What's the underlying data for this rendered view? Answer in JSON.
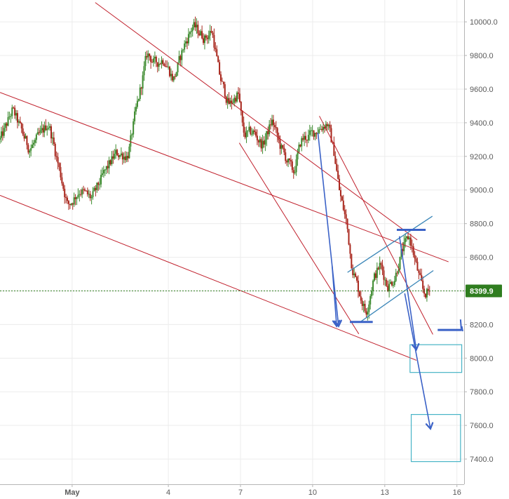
{
  "chart_data": {
    "type": "candlestick",
    "title": "",
    "xlabel": "",
    "ylabel": "",
    "ylim": [
      7250,
      10130
    ],
    "xlim": [
      -3.0,
      16.3
    ],
    "grid": true,
    "x_tick_labels": [
      {
        "x": 0,
        "label": "May"
      },
      {
        "x": 4,
        "label": "4"
      },
      {
        "x": 7,
        "label": "7"
      },
      {
        "x": 10,
        "label": "10"
      },
      {
        "x": 13,
        "label": "13"
      },
      {
        "x": 16,
        "label": "16"
      }
    ],
    "y_ticks": [
      7400,
      7600,
      7800,
      8000,
      8200,
      8400,
      8600,
      8800,
      9000,
      9200,
      9400,
      9600,
      9800,
      10000
    ],
    "y_tick_labels": [
      "7400.0",
      "7600.0",
      "7800.0",
      "8000.0",
      "8200.0",
      "8400.0",
      "8600.0",
      "8800.0",
      "9000.0",
      "9200.0",
      "9400.0",
      "9600.0",
      "9800.0",
      "10000.0"
    ],
    "current_price": 8399.9,
    "current_price_label": "8399.9",
    "colors": {
      "up": "#3c8a2e",
      "down": "#a8261c",
      "trendline": "#c0202c",
      "channel": "#3a86b8",
      "arrow": "#3b62c7",
      "box": "#46b4c6",
      "grid": "#ececec",
      "price_tag": "#2f7d1f",
      "price_line": "#2f7d1f"
    },
    "price_path": [
      [
        -3.0,
        9300
      ],
      [
        -2.5,
        9480
      ],
      [
        -1.8,
        9240
      ],
      [
        -1.0,
        9400
      ],
      [
        -0.6,
        9150
      ],
      [
        -0.2,
        8900
      ],
      [
        0.3,
        9000
      ],
      [
        0.8,
        8950
      ],
      [
        1.3,
        9100
      ],
      [
        1.8,
        9220
      ],
      [
        2.3,
        9200
      ],
      [
        2.6,
        9450
      ],
      [
        2.9,
        9660
      ],
      [
        3.1,
        9820
      ],
      [
        3.4,
        9750
      ],
      [
        3.8,
        9780
      ],
      [
        4.2,
        9650
      ],
      [
        4.6,
        9850
      ],
      [
        5.0,
        9980
      ],
      [
        5.5,
        9900
      ],
      [
        5.8,
        9950
      ],
      [
        6.1,
        9680
      ],
      [
        6.5,
        9500
      ],
      [
        6.9,
        9580
      ],
      [
        7.1,
        9320
      ],
      [
        7.5,
        9350
      ],
      [
        7.9,
        9260
      ],
      [
        8.3,
        9420
      ],
      [
        8.6,
        9270
      ],
      [
        8.9,
        9180
      ],
      [
        9.2,
        9100
      ],
      [
        9.5,
        9300
      ],
      [
        9.8,
        9320
      ],
      [
        10.2,
        9360
      ],
      [
        10.6,
        9400
      ],
      [
        10.9,
        9200
      ],
      [
        11.1,
        8980
      ],
      [
        11.4,
        8800
      ],
      [
        11.6,
        8550
      ],
      [
        11.9,
        8400
      ],
      [
        12.2,
        8260
      ],
      [
        12.5,
        8470
      ],
      [
        12.8,
        8560
      ],
      [
        13.1,
        8420
      ],
      [
        13.4,
        8480
      ],
      [
        13.7,
        8640
      ],
      [
        14.0,
        8730
      ],
      [
        14.3,
        8540
      ],
      [
        14.6,
        8380
      ],
      [
        14.9,
        8400
      ]
    ],
    "trendlines": [
      {
        "x1": 0.96,
        "y1": 10115,
        "x2": 14.35,
        "y2": 8703
      },
      {
        "x1": -3.0,
        "y1": 9580,
        "x2": 15.65,
        "y2": 8573
      },
      {
        "x1": -3.0,
        "y1": 8968,
        "x2": 14.32,
        "y2": 7987
      },
      {
        "x1": 6.95,
        "y1": 9280,
        "x2": 11.92,
        "y2": 8144
      },
      {
        "x1": 10.28,
        "y1": 9440,
        "x2": 15.0,
        "y2": 8141
      }
    ],
    "channel_lines": [
      {
        "x1": 11.45,
        "y1": 8510,
        "x2": 14.98,
        "y2": 8844
      },
      {
        "x1": 12.01,
        "y1": 8218,
        "x2": 15.02,
        "y2": 8521
      }
    ],
    "levels": [
      {
        "x1": 11.55,
        "x2": 12.5,
        "y": 8215
      },
      {
        "x1": 13.5,
        "x2": 14.7,
        "y": 8763
      },
      {
        "x1": 15.2,
        "x2": 16.2,
        "y": 8168
      }
    ],
    "arrows": [
      {
        "x1": 10.22,
        "y1": 9340,
        "x2": 11.08,
        "y2": 8190
      },
      {
        "x1": 10.81,
        "y1": 8550,
        "x2": 11.0,
        "y2": 8190
      },
      {
        "x1": 13.61,
        "y1": 8725,
        "x2": 14.31,
        "y2": 8050
      },
      {
        "x1": 13.83,
        "y1": 8385,
        "x2": 14.9,
        "y2": 7580
      }
    ],
    "target_boxes": [
      {
        "x1": 14.05,
        "x2": 16.2,
        "y1": 7915,
        "y2": 8080
      },
      {
        "x1": 14.1,
        "x2": 16.15,
        "y1": 7385,
        "y2": 7665
      }
    ]
  }
}
